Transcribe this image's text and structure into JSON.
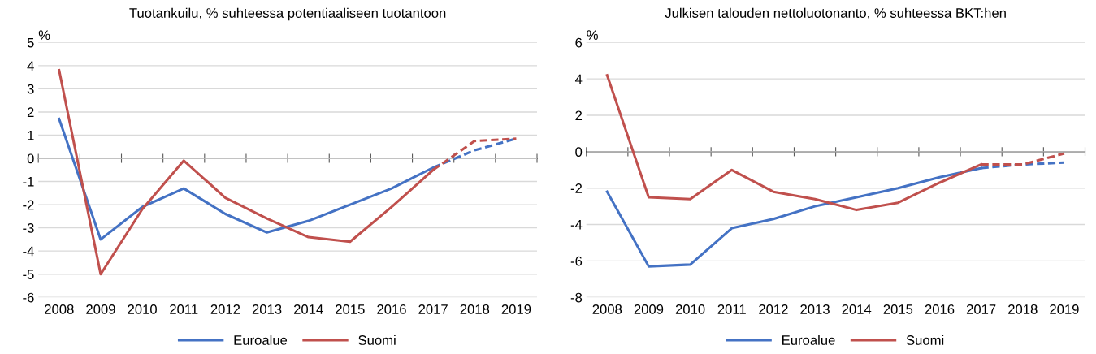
{
  "chart_data": [
    {
      "type": "line",
      "title": "Tuotankuilu, % suhteessa potentiaaliseen tuotantoon",
      "ylabel": "%",
      "categories": [
        "2008",
        "2009",
        "2010",
        "2011",
        "2012",
        "2013",
        "2014",
        "2015",
        "2016",
        "2017",
        "2018",
        "2019"
      ],
      "series": [
        {
          "name": "Euroalue",
          "color": "#4472c4",
          "line_style": "solid",
          "values": [
            1.7,
            -3.5,
            -2.1,
            -1.3,
            -2.4,
            -3.2,
            -2.7,
            -2.0,
            -1.3,
            -0.4,
            null,
            null
          ]
        },
        {
          "name": "Suomi",
          "color": "#c0504d",
          "line_style": "solid",
          "values": [
            3.8,
            -5.0,
            -2.2,
            -0.1,
            -1.7,
            -2.6,
            -3.4,
            -3.6,
            -2.1,
            -0.5,
            null,
            null
          ]
        },
        {
          "color": "#4472c4",
          "line_style": "dashed",
          "values": [
            null,
            null,
            null,
            null,
            null,
            null,
            null,
            null,
            null,
            -0.4,
            0.35,
            0.85
          ]
        },
        {
          "color": "#c0504d",
          "line_style": "dashed",
          "values": [
            null,
            null,
            null,
            null,
            null,
            null,
            null,
            null,
            null,
            -0.5,
            0.75,
            0.85
          ]
        }
      ],
      "ylim": [
        -6,
        5
      ],
      "yticks": [
        -6,
        -5,
        -4,
        -3,
        -2,
        -1,
        0,
        1,
        2,
        3,
        4,
        5
      ],
      "grid": "y",
      "legend": "bottom",
      "marker": "none"
    },
    {
      "type": "line",
      "title": "Julkisen talouden nettoluotonanto, % suhteessa BKT:hen",
      "ylabel": "%",
      "categories": [
        "2008",
        "2009",
        "2010",
        "2011",
        "2012",
        "2013",
        "2014",
        "2015",
        "2016",
        "2017",
        "2018",
        "2019"
      ],
      "series": [
        {
          "name": "Euroalue",
          "color": "#4472c4",
          "line_style": "solid",
          "values": [
            -2.2,
            -6.3,
            -6.2,
            -4.2,
            -3.7,
            -3.0,
            -2.5,
            -2.0,
            -1.4,
            -0.9,
            null,
            null
          ]
        },
        {
          "name": "Suomi",
          "color": "#c0504d",
          "line_style": "solid",
          "values": [
            4.2,
            -2.5,
            -2.6,
            -1.0,
            -2.2,
            -2.6,
            -3.2,
            -2.8,
            -1.7,
            -0.7,
            null,
            null
          ]
        },
        {
          "color": "#4472c4",
          "line_style": "dashed",
          "values": [
            null,
            null,
            null,
            null,
            null,
            null,
            null,
            null,
            null,
            -0.9,
            -0.7,
            -0.6
          ]
        },
        {
          "color": "#c0504d",
          "line_style": "dashed",
          "values": [
            null,
            null,
            null,
            null,
            null,
            null,
            null,
            null,
            null,
            -0.7,
            -0.7,
            -0.1
          ]
        }
      ],
      "ylim": [
        -8,
        6
      ],
      "yticks": [
        -8,
        -6,
        -4,
        -2,
        0,
        2,
        4,
        6
      ],
      "grid": "y",
      "legend": "bottom",
      "marker": "none"
    }
  ]
}
